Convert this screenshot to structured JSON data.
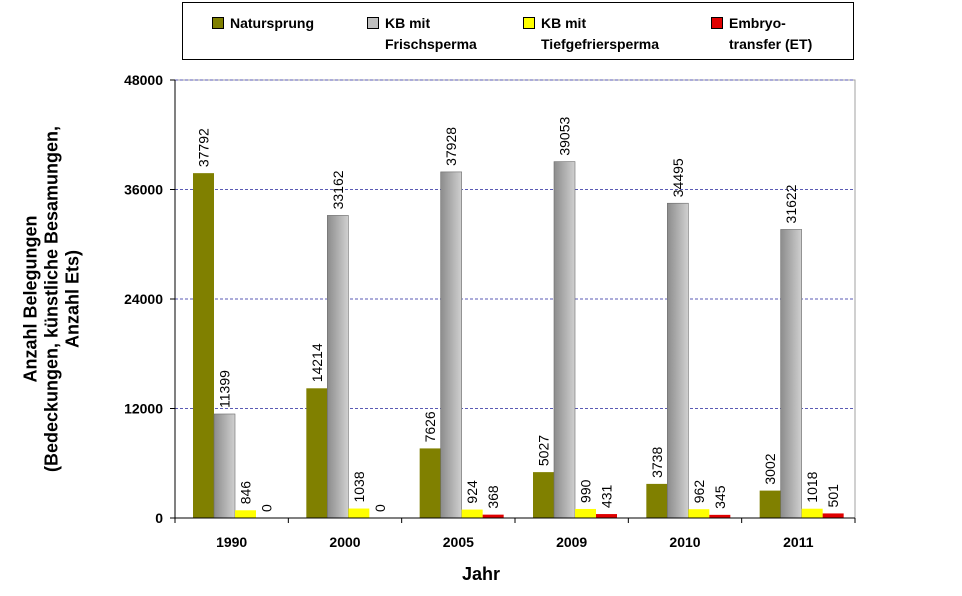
{
  "chart_data": {
    "type": "bar",
    "categories": [
      "1990",
      "2000",
      "2005",
      "2009",
      "2010",
      "2011"
    ],
    "series": [
      {
        "name": "Natursprung",
        "color": "#808000",
        "values": [
          37792,
          14214,
          7626,
          5027,
          3738,
          3002
        ]
      },
      {
        "name": "KB mit\nFrischsperma",
        "color": "#a6a6a6",
        "values": [
          11399,
          33162,
          37928,
          39053,
          34495,
          31622
        ]
      },
      {
        "name": "KB mit\nTiefgefriersperma",
        "color": "#ffff00",
        "values": [
          846,
          1038,
          924,
          990,
          962,
          1018
        ]
      },
      {
        "name": "Embryo-\ntransfer (ET)",
        "color": "#e00000",
        "values": [
          0,
          0,
          368,
          431,
          345,
          501
        ]
      }
    ],
    "xlabel": "Jahr",
    "ylabel": "Anzahl Belegungen\n(Bedeckungen, künstliche Besamungen,\nAnzahl Ets)",
    "ylim": [
      0,
      48000
    ],
    "yticks": [
      "0",
      "12000",
      "24000",
      "36000",
      "48000"
    ],
    "grid": true,
    "legend_position": "top"
  }
}
